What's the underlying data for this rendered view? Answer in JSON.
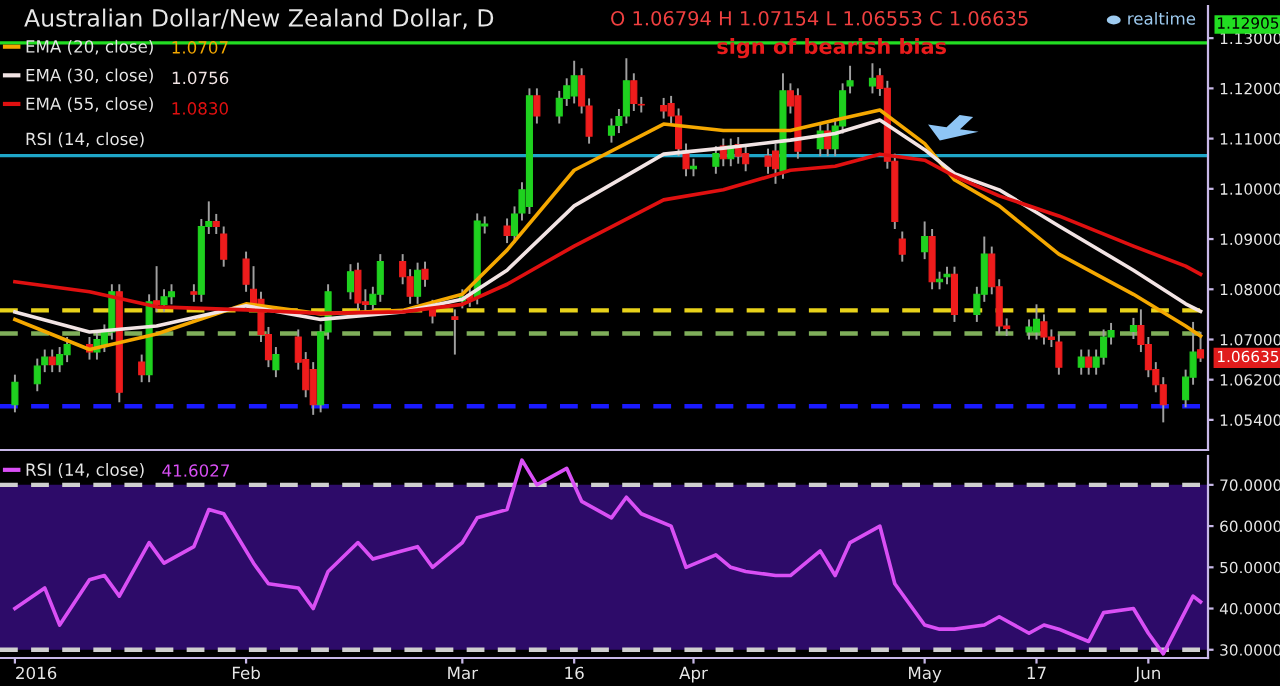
{
  "chart_data": [
    {
      "type": "candlestick",
      "title": "Australian Dollar/New Zealand Dollar, D",
      "x": [
        "2016-01-01",
        "2016-01-04",
        "2016-01-05",
        "2016-01-06",
        "2016-01-07",
        "2016-01-08",
        "2016-01-11",
        "2016-01-12",
        "2016-01-13",
        "2016-01-14",
        "2016-01-15",
        "2016-01-18",
        "2016-01-19",
        "2016-01-20",
        "2016-01-21",
        "2016-01-22",
        "2016-01-25",
        "2016-01-26",
        "2016-01-27",
        "2016-01-28",
        "2016-01-29",
        "2016-02-01",
        "2016-02-02",
        "2016-02-03",
        "2016-02-04",
        "2016-02-05",
        "2016-02-08",
        "2016-02-09",
        "2016-02-10",
        "2016-02-11",
        "2016-02-12",
        "2016-02-15",
        "2016-02-16",
        "2016-02-17",
        "2016-02-18",
        "2016-02-19",
        "2016-02-22",
        "2016-02-23",
        "2016-02-24",
        "2016-02-25",
        "2016-02-26",
        "2016-02-29",
        "2016-03-01",
        "2016-03-02",
        "2016-03-03",
        "2016-03-04",
        "2016-03-07",
        "2016-03-08",
        "2016-03-09",
        "2016-03-10",
        "2016-03-11",
        "2016-03-14",
        "2016-03-15",
        "2016-03-16",
        "2016-03-17",
        "2016-03-18",
        "2016-03-21",
        "2016-03-22",
        "2016-03-23",
        "2016-03-24",
        "2016-03-25",
        "2016-03-28",
        "2016-03-29",
        "2016-03-30",
        "2016-03-31",
        "2016-04-01",
        "2016-04-04",
        "2016-04-05",
        "2016-04-06",
        "2016-04-07",
        "2016-04-08",
        "2016-04-11",
        "2016-04-12",
        "2016-04-13",
        "2016-04-14",
        "2016-04-15",
        "2016-04-18",
        "2016-04-19",
        "2016-04-20",
        "2016-04-21",
        "2016-04-22",
        "2016-04-25",
        "2016-04-26",
        "2016-04-27",
        "2016-04-28",
        "2016-04-29",
        "2016-05-02",
        "2016-05-03",
        "2016-05-04",
        "2016-05-05",
        "2016-05-06",
        "2016-05-09",
        "2016-05-10",
        "2016-05-11",
        "2016-05-12",
        "2016-05-13",
        "2016-05-16",
        "2016-05-17",
        "2016-05-18",
        "2016-05-19",
        "2016-05-20",
        "2016-05-23",
        "2016-05-24",
        "2016-05-25",
        "2016-05-26",
        "2016-05-27",
        "2016-05-30",
        "2016-05-31",
        "2016-06-01",
        "2016-06-02",
        "2016-06-03",
        "2016-06-06",
        "2016-06-07",
        "2016-06-08"
      ],
      "ohlc": [
        [
          1.057,
          1.063,
          1.0555,
          1.0615
        ],
        [
          1.0612,
          1.0662,
          1.0597,
          1.0647
        ],
        [
          1.065,
          1.068,
          1.0635,
          1.0665
        ],
        [
          1.0665,
          1.068,
          1.0635,
          1.065
        ],
        [
          1.065,
          1.0685,
          1.0635,
          1.067
        ],
        [
          1.067,
          1.0705,
          1.0655,
          1.069
        ],
        [
          1.069,
          1.0705,
          1.066,
          1.0675
        ],
        [
          1.0675,
          1.0715,
          1.066,
          1.07
        ],
        [
          1.069,
          1.073,
          1.0675,
          1.0715
        ],
        [
          1.0715,
          1.081,
          1.07,
          1.0795
        ],
        [
          1.0795,
          1.081,
          1.0575,
          1.0595
        ],
        [
          1.0655,
          1.067,
          1.0615,
          1.063
        ],
        [
          1.063,
          1.079,
          1.0615,
          1.0775
        ],
        [
          1.0777,
          1.0846,
          1.0755,
          1.077
        ],
        [
          1.077,
          1.08,
          1.0755,
          1.0785
        ],
        [
          1.0785,
          1.081,
          1.077,
          1.0795
        ],
        [
          1.0795,
          1.081,
          1.0775,
          1.079
        ],
        [
          1.079,
          1.094,
          1.0775,
          1.0925
        ],
        [
          1.0925,
          1.0975,
          1.091,
          1.0935
        ],
        [
          1.0935,
          1.095,
          1.091,
          1.0925
        ],
        [
          1.091,
          1.0925,
          1.0845,
          1.086
        ],
        [
          1.086,
          1.0875,
          1.0795,
          1.081
        ],
        [
          1.08,
          1.0846,
          1.0755,
          1.077
        ],
        [
          1.078,
          1.0795,
          1.0695,
          1.071
        ],
        [
          1.071,
          1.0725,
          1.0645,
          1.066
        ],
        [
          1.064,
          1.0685,
          1.0625,
          1.067
        ],
        [
          1.0705,
          1.072,
          1.064,
          1.0655
        ],
        [
          1.066,
          1.0675,
          1.0585,
          1.06
        ],
        [
          1.064,
          1.0655,
          1.055,
          1.057
        ],
        [
          1.057,
          1.073,
          1.0555,
          1.0715
        ],
        [
          1.0715,
          1.081,
          1.07,
          1.0795
        ],
        [
          1.0795,
          1.085,
          1.078,
          1.0835
        ],
        [
          1.0838,
          1.0853,
          1.0758,
          1.0773
        ],
        [
          1.0775,
          1.08,
          1.0755,
          1.077
        ],
        [
          1.077,
          1.0805,
          1.0755,
          1.079
        ],
        [
          1.079,
          1.087,
          1.0775,
          1.0855
        ],
        [
          1.0855,
          1.087,
          1.081,
          1.0825
        ],
        [
          1.0825,
          1.084,
          1.0771,
          1.0786
        ],
        [
          1.0786,
          1.0853,
          1.0771,
          1.0838
        ],
        [
          1.084,
          1.0855,
          1.0805,
          1.082
        ],
        [
          1.0764,
          1.0779,
          1.0732,
          1.0747
        ],
        [
          1.0745,
          1.076,
          1.067,
          1.074
        ],
        [
          1.0777,
          1.08,
          1.0762,
          1.0785
        ],
        [
          1.079,
          1.0805,
          1.0765,
          1.078
        ],
        [
          1.0785,
          1.0951,
          1.077,
          1.0936
        ],
        [
          1.0926,
          1.0945,
          1.0911,
          1.093
        ],
        [
          1.0926,
          1.0941,
          1.0892,
          1.0907
        ],
        [
          1.0907,
          1.0965,
          1.0892,
          1.095
        ],
        [
          1.0952,
          1.1013,
          1.0937,
          1.0998
        ],
        [
          1.0965,
          1.12,
          1.095,
          1.1185
        ],
        [
          1.1185,
          1.12,
          1.113,
          1.1145
        ],
        [
          1.1145,
          1.1195,
          1.113,
          1.118
        ],
        [
          1.118,
          1.122,
          1.1165,
          1.1205
        ],
        [
          1.1185,
          1.1255,
          1.117,
          1.1225
        ],
        [
          1.1225,
          1.124,
          1.115,
          1.1165
        ],
        [
          1.1165,
          1.118,
          1.109,
          1.1105
        ],
        [
          1.1107,
          1.114,
          1.1092,
          1.1125
        ],
        [
          1.1126,
          1.1159,
          1.1111,
          1.1144
        ],
        [
          1.1145,
          1.126,
          1.113,
          1.1215
        ],
        [
          1.1215,
          1.123,
          1.1155,
          1.117
        ],
        [
          1.1168,
          1.1183,
          1.1152,
          1.1167
        ],
        [
          1.1166,
          1.1181,
          1.114,
          1.1155
        ],
        [
          1.117,
          1.1185,
          1.113,
          1.1145
        ],
        [
          1.1145,
          1.116,
          1.1065,
          1.108
        ],
        [
          1.1075,
          1.109,
          1.1025,
          1.104
        ],
        [
          1.104,
          1.106,
          1.1025,
          1.1045
        ],
        [
          1.1045,
          1.1085,
          1.103,
          1.107
        ],
        [
          1.1085,
          1.11,
          1.1045,
          1.106
        ],
        [
          1.106,
          1.11,
          1.1045,
          1.1085
        ],
        [
          1.1088,
          1.1103,
          1.105,
          1.1065
        ],
        [
          1.107,
          1.1085,
          1.1035,
          1.105
        ],
        [
          1.1065,
          1.108,
          1.103,
          1.1045
        ],
        [
          1.1075,
          1.109,
          1.101,
          1.104
        ],
        [
          1.1035,
          1.123,
          1.102,
          1.1195
        ],
        [
          1.1195,
          1.121,
          1.115,
          1.1165
        ],
        [
          1.1185,
          1.12,
          1.106,
          1.1075
        ],
        [
          1.108,
          1.113,
          1.1065,
          1.1115
        ],
        [
          1.1115,
          1.113,
          1.1065,
          1.108
        ],
        [
          1.108,
          1.114,
          1.1065,
          1.1125
        ],
        [
          1.1125,
          1.121,
          1.111,
          1.1195
        ],
        [
          1.1205,
          1.1245,
          1.119,
          1.1215
        ],
        [
          1.1205,
          1.125,
          1.119,
          1.122
        ],
        [
          1.1225,
          1.124,
          1.1185,
          1.12
        ],
        [
          1.12,
          1.1215,
          1.104,
          1.1055
        ],
        [
          1.1055,
          1.107,
          1.092,
          1.0935
        ],
        [
          1.09,
          1.0915,
          1.0855,
          1.087
        ],
        [
          1.0875,
          1.0935,
          1.086,
          1.0905
        ],
        [
          1.0905,
          1.092,
          1.08,
          1.0815
        ],
        [
          1.0815,
          1.0835,
          1.08,
          1.082
        ],
        [
          1.0825,
          1.0845,
          1.081,
          1.083
        ],
        [
          1.083,
          1.0845,
          1.0735,
          1.075
        ],
        [
          1.075,
          1.0805,
          1.0735,
          1.079
        ],
        [
          1.079,
          1.0905,
          1.0775,
          1.087
        ],
        [
          1.087,
          1.0885,
          1.079,
          1.0805
        ],
        [
          1.0805,
          1.082,
          1.0712,
          1.0727
        ],
        [
          1.0727,
          1.0742,
          1.0707,
          1.0722
        ],
        [
          1.0715,
          1.074,
          1.07,
          1.0725
        ],
        [
          1.0715,
          1.077,
          1.07,
          1.074
        ],
        [
          1.0735,
          1.075,
          1.069,
          1.0705
        ],
        [
          1.0705,
          1.072,
          1.0685,
          1.07
        ],
        [
          1.0695,
          1.071,
          1.063,
          1.0645
        ],
        [
          1.0645,
          1.068,
          1.063,
          1.0665
        ],
        [
          1.0665,
          1.068,
          1.063,
          1.0645
        ],
        [
          1.0645,
          1.068,
          1.063,
          1.0665
        ],
        [
          1.0665,
          1.072,
          1.065,
          1.0705
        ],
        [
          1.0705,
          1.0733,
          1.069,
          1.0718
        ],
        [
          1.0716,
          1.0743,
          1.0701,
          1.0728
        ],
        [
          1.0728,
          1.076,
          1.0675,
          1.069
        ],
        [
          1.069,
          1.0705,
          1.0625,
          1.064
        ],
        [
          1.064,
          1.0655,
          1.0595,
          1.061
        ],
        [
          1.061,
          1.0625,
          1.0535,
          1.057
        ],
        [
          1.058,
          1.064,
          1.0565,
          1.0625
        ],
        [
          1.0625,
          1.0735,
          1.061,
          1.0675
        ],
        [
          1.06794,
          1.07154,
          1.06553,
          1.06635
        ]
      ],
      "series": [
        {
          "name": "EMA (20, close)",
          "type": "line",
          "color": "#f5a800",
          "x": [
            "2016-01-01",
            "2016-01-11",
            "2016-01-20",
            "2016-02-01",
            "2016-02-11",
            "2016-02-22",
            "2016-03-01",
            "2016-03-07",
            "2016-03-16",
            "2016-03-28",
            "2016-04-05",
            "2016-04-14",
            "2016-04-20",
            "2016-04-26",
            "2016-05-02",
            "2016-05-06",
            "2016-05-12",
            "2016-05-20",
            "2016-05-30",
            "2016-06-06",
            "2016-06-08"
          ],
          "values": [
            1.074,
            1.068,
            1.0711,
            1.0771,
            1.0751,
            1.0758,
            1.079,
            1.0878,
            1.1037,
            1.1129,
            1.1116,
            1.1116,
            1.1137,
            1.1157,
            1.109,
            1.1018,
            1.0966,
            1.087,
            1.079,
            1.0727,
            1.0707
          ]
        },
        {
          "name": "EMA (30, close)",
          "type": "line",
          "color": "#f2e4e4",
          "x": [
            "2016-01-01",
            "2016-01-11",
            "2016-01-20",
            "2016-02-01",
            "2016-02-11",
            "2016-02-22",
            "2016-03-01",
            "2016-03-07",
            "2016-03-16",
            "2016-03-28",
            "2016-04-05",
            "2016-04-14",
            "2016-04-20",
            "2016-04-26",
            "2016-05-02",
            "2016-05-06",
            "2016-05-12",
            "2016-05-20",
            "2016-05-30",
            "2016-06-06",
            "2016-06-08"
          ],
          "values": [
            1.0755,
            1.0715,
            1.0727,
            1.0767,
            1.074,
            1.0755,
            1.078,
            1.0838,
            1.0966,
            1.1069,
            1.1081,
            1.1097,
            1.111,
            1.1137,
            1.1078,
            1.103,
            1.0998,
            1.0926,
            1.0838,
            1.0771,
            1.0756
          ]
        },
        {
          "name": "EMA (55, close)",
          "type": "line",
          "color": "#e01010",
          "x": [
            "2016-01-01",
            "2016-01-11",
            "2016-01-20",
            "2016-02-01",
            "2016-02-11",
            "2016-02-22",
            "2016-03-01",
            "2016-03-07",
            "2016-03-16",
            "2016-03-28",
            "2016-04-05",
            "2016-04-14",
            "2016-04-20",
            "2016-04-26",
            "2016-05-02",
            "2016-05-06",
            "2016-05-12",
            "2016-05-20",
            "2016-05-30",
            "2016-06-06",
            "2016-06-08"
          ],
          "values": [
            1.0815,
            1.0795,
            1.0765,
            1.0759,
            1.0752,
            1.0755,
            1.077,
            1.081,
            1.0886,
            1.0978,
            1.0998,
            1.1037,
            1.1045,
            1.1069,
            1.1057,
            1.1025,
            1.0986,
            1.0946,
            1.0886,
            1.0846,
            1.083
          ]
        }
      ],
      "xlim": [
        "2015-12-30",
        "2016-06-09"
      ],
      "ylim": [
        1.048,
        1.1364
      ],
      "yticks": [
        {
          "value": 1.054,
          "label": "1.05400"
        },
        {
          "value": 1.062,
          "label": "1.06200"
        },
        {
          "value": 1.07,
          "label": "1.07000"
        },
        {
          "value": 1.08,
          "label": "1.08000"
        },
        {
          "value": 1.09,
          "label": "1.09000"
        },
        {
          "value": 1.1,
          "label": "1.10000"
        },
        {
          "value": 1.11,
          "label": "1.11000"
        },
        {
          "value": 1.12,
          "label": "1.12000"
        },
        {
          "value": 1.13,
          "label": "1.13000"
        }
      ],
      "tick_labels": "y",
      "ref_lines": [
        {
          "axis": "y",
          "value": 1.12905,
          "label": "1.12905",
          "color": "#22dd22",
          "line_style": "solid"
        },
        {
          "axis": "y",
          "value": 1.1066,
          "color": "#1fa6c8",
          "line_style": "solid"
        },
        {
          "axis": "y",
          "value": 1.0758,
          "color": "#e8d21a",
          "line_style": "dashed"
        },
        {
          "axis": "y",
          "value": 1.0712,
          "color": "#7fae5a",
          "line_style": "dashed"
        },
        {
          "axis": "y",
          "value": 1.0567,
          "color": "#1a1aff",
          "line_style": "dashed"
        }
      ],
      "annotations": [
        "O 1.06794 H 1.07154 L 1.06553 C 1.06635",
        "realtime",
        "RSI (14, close)",
        "sign of bearish bias",
        "1.06635",
        "1.0707",
        "1.0756",
        "1.0830"
      ],
      "legend": "top left",
      "grid": false
    },
    {
      "type": "line",
      "x": [
        "2016-01-01",
        "2016-01-05",
        "2016-01-07",
        "2016-01-11",
        "2016-01-13",
        "2016-01-15",
        "2016-01-19",
        "2016-01-21",
        "2016-01-25",
        "2016-01-27",
        "2016-01-29",
        "2016-02-02",
        "2016-02-04",
        "2016-02-08",
        "2016-02-10",
        "2016-02-12",
        "2016-02-16",
        "2016-02-18",
        "2016-02-22",
        "2016-02-24",
        "2016-02-26",
        "2016-03-01",
        "2016-03-03",
        "2016-03-07",
        "2016-03-09",
        "2016-03-11",
        "2016-03-15",
        "2016-03-17",
        "2016-03-21",
        "2016-03-23",
        "2016-03-25",
        "2016-03-29",
        "2016-03-31",
        "2016-04-04",
        "2016-04-06",
        "2016-04-08",
        "2016-04-12",
        "2016-04-14",
        "2016-04-18",
        "2016-04-20",
        "2016-04-22",
        "2016-04-26",
        "2016-04-28",
        "2016-05-02",
        "2016-05-04",
        "2016-05-06",
        "2016-05-10",
        "2016-05-12",
        "2016-05-16",
        "2016-05-18",
        "2016-05-20",
        "2016-05-24",
        "2016-05-26",
        "2016-05-30",
        "2016-06-01",
        "2016-06-03",
        "2016-06-07",
        "2016-06-08"
      ],
      "series": [
        {
          "name": "RSI (14, close)",
          "color": "#d94ff5",
          "values": [
            40,
            45,
            36,
            47,
            48,
            43,
            56,
            51,
            55,
            64,
            63,
            51,
            46,
            45,
            40,
            49,
            56,
            52,
            54,
            55,
            50,
            56,
            62,
            64,
            76,
            70,
            74,
            66,
            62,
            67,
            63,
            60,
            50,
            53,
            50,
            49,
            48,
            48,
            54,
            48,
            56,
            60,
            46,
            36,
            35,
            35,
            36,
            38,
            34,
            36,
            35,
            32,
            39,
            40,
            34,
            29,
            43,
            41.6027
          ]
        }
      ],
      "xlim": [
        "2015-12-30",
        "2016-06-09"
      ],
      "xticks": [
        {
          "value": "2016-01-01",
          "label": "2016"
        },
        {
          "value": "2016-02-01",
          "label": "Feb"
        },
        {
          "value": "2016-03-01",
          "label": "Mar"
        },
        {
          "value": "2016-03-16",
          "label": "16"
        },
        {
          "value": "2016-04-01",
          "label": "Apr"
        },
        {
          "value": "2016-05-02",
          "label": "May"
        },
        {
          "value": "2016-05-17",
          "label": "17"
        },
        {
          "value": "2016-06-01",
          "label": "Jun"
        }
      ],
      "ylim": [
        28,
        77
      ],
      "yticks": [
        {
          "value": 30,
          "label": "30.0000"
        },
        {
          "value": 40,
          "label": "40.0000"
        },
        {
          "value": 50,
          "label": "50.0000"
        },
        {
          "value": 60,
          "label": "60.0000"
        },
        {
          "value": 70,
          "label": "70.0000"
        }
      ],
      "bands": [
        {
          "axis": "y",
          "from": 30,
          "to": 70,
          "color": "#2d0b69"
        }
      ],
      "ref_lines": [
        {
          "axis": "y",
          "value": 70,
          "color": "#cfcfcf",
          "line_style": "dashed"
        },
        {
          "axis": "y",
          "value": 30,
          "color": "#cfcfcf",
          "line_style": "dashed"
        }
      ],
      "annotations": [
        "41.6027"
      ],
      "legend": "top left",
      "grid": false
    }
  ]
}
